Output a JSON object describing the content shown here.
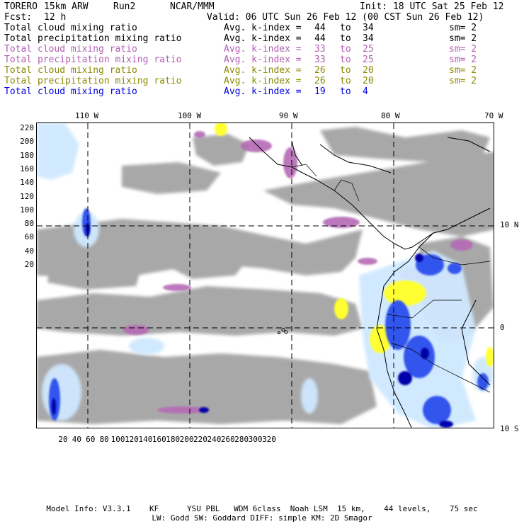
{
  "header": {
    "model": "TORERO",
    "resolution": "15km ARW",
    "run": "Run2",
    "org": "NCAR/MMM",
    "init": "Init: 18 UTC Sat 25 Feb 12",
    "fcst_label": "Fcst:",
    "fcst_value": "12 h",
    "valid": "Valid: 06 UTC Sun 26 Feb 12 (00 CST Sun 26 Feb 12)"
  },
  "legend": [
    {
      "field": "Total cloud mixing ratio",
      "kindex": "Avg. k-index =",
      "from": "44",
      "to_word": "to",
      "to": "34",
      "sm": "sm= 2",
      "color": "#000000"
    },
    {
      "field": "Total precipitation mixing ratio",
      "kindex": "Avg. k-index =",
      "from": "44",
      "to_word": "to",
      "to": "34",
      "sm": "sm= 2",
      "color": "#000000"
    },
    {
      "field": "Total cloud mixing ratio",
      "kindex": "Avg. k-index =",
      "from": "33",
      "to_word": "to",
      "to": "25",
      "sm": "sm= 2",
      "color": "#b25fb2"
    },
    {
      "field": "Total precipitation mixing ratio",
      "kindex": "Avg. k-index =",
      "from": "33",
      "to_word": "to",
      "to": "25",
      "sm": "sm= 2",
      "color": "#b25fb2"
    },
    {
      "field": "Total cloud mixing ratio",
      "kindex": "Avg. k-index =",
      "from": "26",
      "to_word": "to",
      "to": "20",
      "sm": "sm= 2",
      "color": "#8a8a00"
    },
    {
      "field": "Total precipitation mixing ratio",
      "kindex": "Avg. k-index =",
      "from": "26",
      "to_word": "to",
      "to": "20",
      "sm": "sm= 2",
      "color": "#8a8a00"
    },
    {
      "field": "Total cloud mixing ratio",
      "kindex": "Avg. k-index =",
      "from": "19",
      "to_word": "to",
      "to": "4",
      "sm": "",
      "color": "#0000e0"
    }
  ],
  "map": {
    "top_labels": [
      "110 W",
      "100 W",
      "90 W",
      "80 W",
      "70 W"
    ],
    "right_labels": [
      "10 N",
      "0",
      "10 S"
    ],
    "left_ticks": [
      "220",
      "200",
      "180",
      "160",
      "140",
      "120",
      "100",
      "80",
      "60",
      "40",
      "20"
    ],
    "bottom_ticks": [
      "20",
      "40",
      "60",
      "80",
      "100",
      "120",
      "140",
      "160",
      "180",
      "200",
      "220",
      "240",
      "260",
      "280",
      "300",
      "320"
    ],
    "colors": {
      "gray": "#9a9a9a",
      "purple": "#b56bb5",
      "yellow": "#ffff33",
      "light_blue": "#cfe8ff",
      "blue": "#3355ee",
      "dark_blue": "#0000aa"
    }
  },
  "footer": {
    "line1": "Model Info: V3.3.1    KF      YSU PBL   WDM 6class  Noah LSM  15 km,    44 levels,    75 sec",
    "line2": "LW: Godd SW: Goddard DIFF: simple KM: 2D Smagor"
  }
}
